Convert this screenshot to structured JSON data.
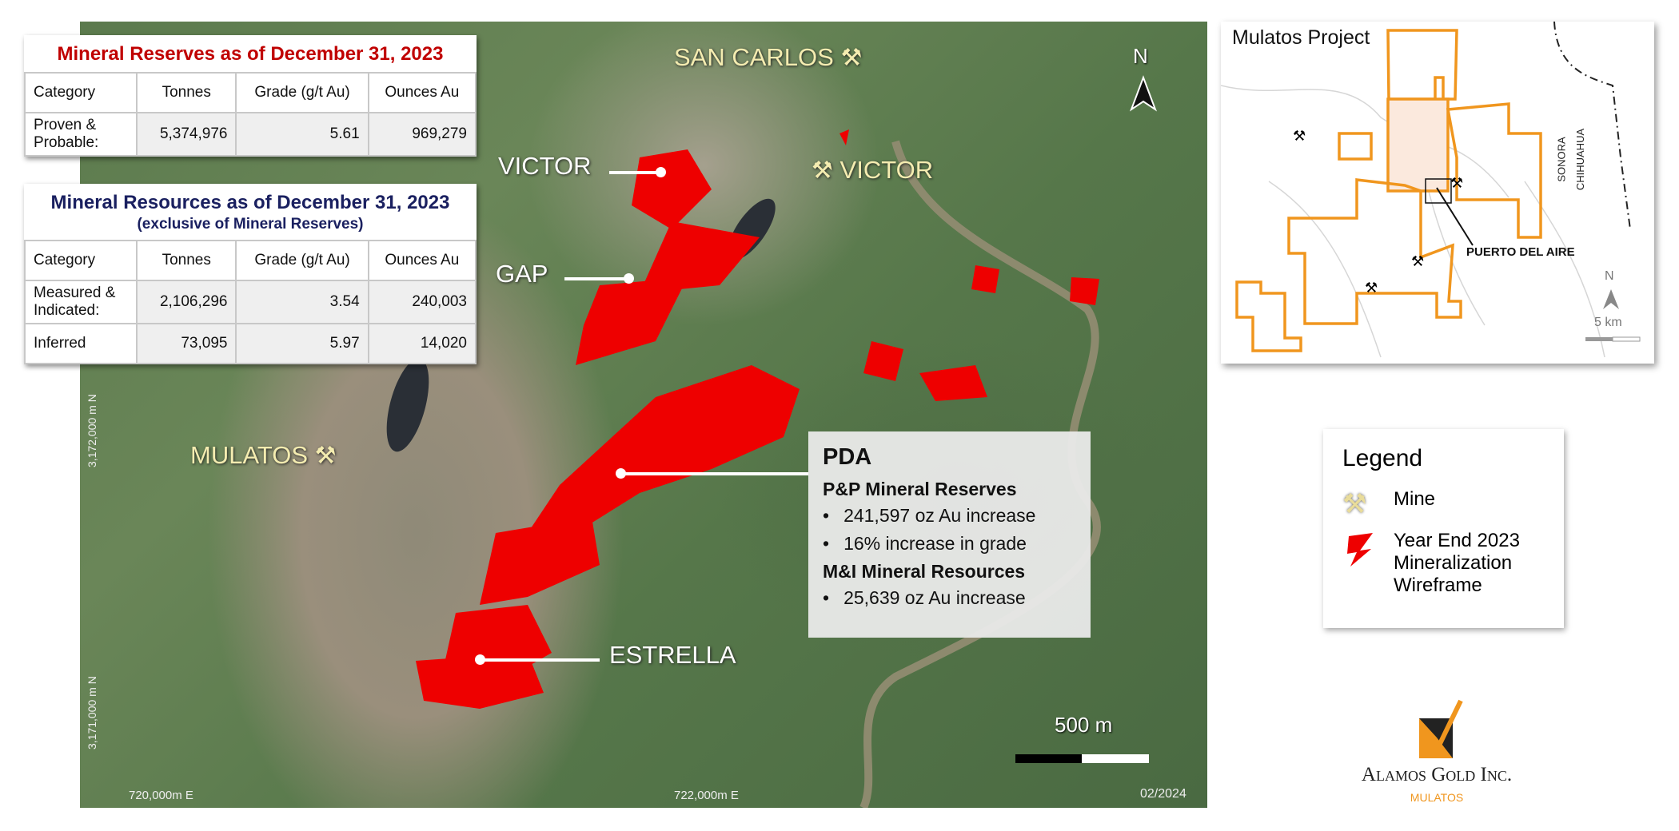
{
  "reserves_table": {
    "title": "Mineral Reserves as of December 31, 2023",
    "title_color": "#c00000",
    "headers": [
      "Category",
      "Tonnes",
      "Grade (g/t Au)",
      "Ounces Au"
    ],
    "rows": [
      {
        "category": "Proven & Probable:",
        "tonnes": "5,374,976",
        "grade": "5.61",
        "ounces": "969,279"
      }
    ]
  },
  "resources_table": {
    "title": "Mineral Resources as of December 31, 2023",
    "subtitle": "(exclusive of Mineral Reserves)",
    "title_color": "#1a2060",
    "headers": [
      "Category",
      "Tonnes",
      "Grade (g/t Au)",
      "Ounces Au"
    ],
    "rows": [
      {
        "category": "Measured & Indicated:",
        "tonnes": "2,106,296",
        "grade": "3.54",
        "ounces": "240,003"
      },
      {
        "category": "Inferred",
        "tonnes": "73,095",
        "grade": "5.97",
        "ounces": "14,020"
      }
    ]
  },
  "map": {
    "mine_labels": [
      "SAN CARLOS",
      "VICTOR",
      "MULATOS"
    ],
    "deposit_labels": [
      "VICTOR",
      "GAP",
      "ESTRELLA"
    ],
    "north": "N",
    "scale_label": "500 m",
    "date": "02/2024",
    "easting_ticks": [
      "720,000m E",
      "722,000m E"
    ],
    "northing_ticks": [
      "3,172,000 m N",
      "3,171,000 m N"
    ],
    "mineralization_color": "#ee0000"
  },
  "pda": {
    "title": "PDA",
    "reserves_heading": "P&P Mineral Reserves",
    "reserves_bullets": [
      "241,597 oz Au increase",
      "16% increase in grade"
    ],
    "resources_heading": "M&I Mineral Resources",
    "resources_bullets": [
      "25,639 oz Au increase"
    ]
  },
  "inset": {
    "title": "Mulatos Project",
    "callout": "PUERTO DEL AIRE",
    "states": [
      "SONORA",
      "CHIHUAHUA"
    ],
    "north": "N",
    "scale_label": "5 km",
    "boundary_color": "#f0961e"
  },
  "legend": {
    "title": "Legend",
    "items": [
      {
        "icon": "mine-pickaxe-icon",
        "label": "Mine"
      },
      {
        "icon": "mineralization-wireframe-icon",
        "label": "Year End 2023 Mineralization Wireframe"
      }
    ]
  },
  "logo": {
    "name": "Alamos Gold Inc.",
    "sub": "MULATOS",
    "accent": "#f0961e"
  }
}
